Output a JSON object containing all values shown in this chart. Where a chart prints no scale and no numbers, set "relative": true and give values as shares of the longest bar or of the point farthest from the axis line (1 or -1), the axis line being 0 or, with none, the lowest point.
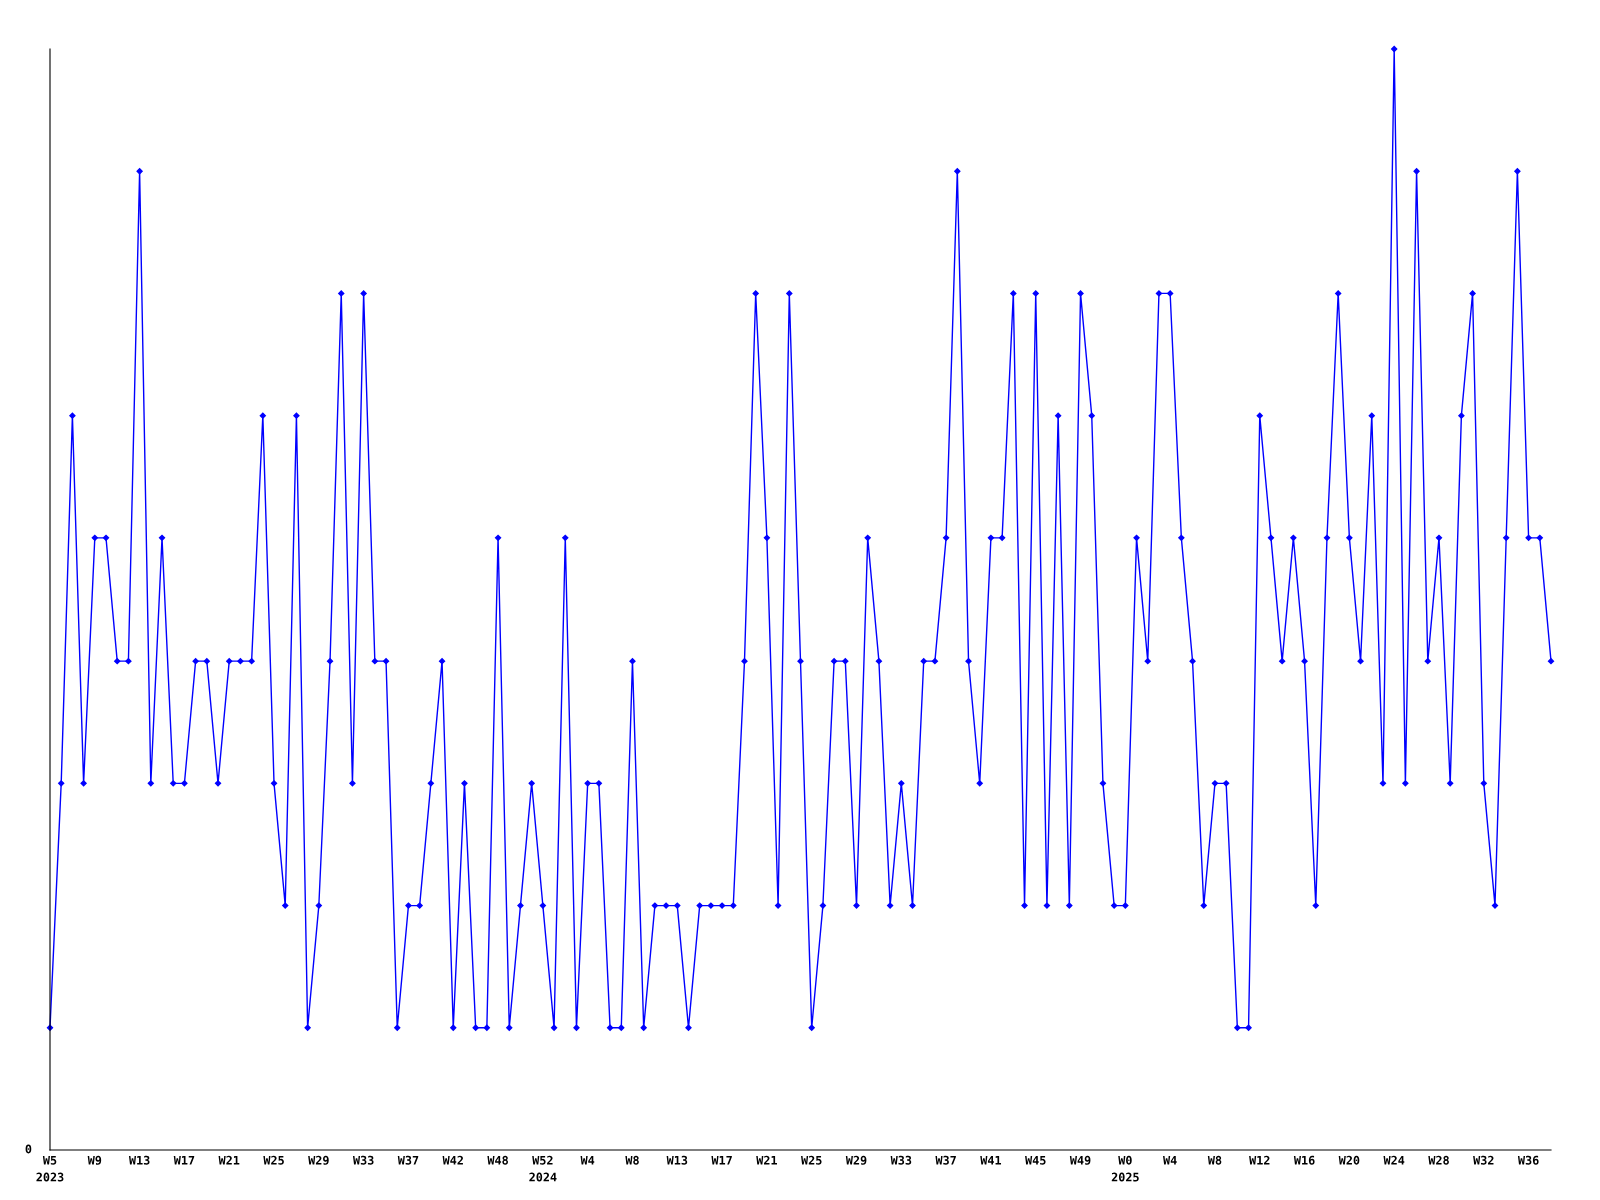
{
  "chart_data": {
    "type": "line",
    "relative": true,
    "marker": "diamond",
    "line_style": "solid",
    "grid": false,
    "legend": false,
    "annotations": [
      "0"
    ],
    "categories": [
      "W5\n2023",
      null,
      null,
      null,
      "W9",
      null,
      null,
      null,
      "W13",
      null,
      null,
      null,
      "W17",
      null,
      null,
      null,
      "W21",
      null,
      null,
      null,
      "W25",
      null,
      null,
      null,
      "W29",
      null,
      null,
      null,
      "W33",
      null,
      null,
      null,
      "W37",
      null,
      null,
      null,
      "W42",
      null,
      null,
      null,
      "W48",
      null,
      null,
      null,
      "W52\n2024",
      null,
      null,
      null,
      "W4",
      null,
      null,
      null,
      "W8",
      null,
      null,
      null,
      "W13",
      null,
      null,
      null,
      "W17",
      null,
      null,
      null,
      "W21",
      null,
      null,
      null,
      "W25",
      null,
      null,
      null,
      "W29",
      null,
      null,
      null,
      "W33",
      null,
      null,
      null,
      "W37",
      null,
      null,
      null,
      "W41",
      null,
      null,
      null,
      "W45",
      null,
      null,
      null,
      "W49",
      null,
      null,
      null,
      "W0\n2025",
      null,
      null,
      null,
      "W4",
      null,
      null,
      null,
      "W8",
      null,
      null,
      null,
      "W12",
      null,
      null,
      null,
      "W16",
      null,
      null,
      null,
      "W20",
      null,
      null,
      null,
      "W24",
      null,
      null,
      null,
      "W28",
      null,
      null,
      null,
      "W32",
      null,
      null,
      null,
      "W36",
      null,
      null
    ],
    "series": [
      {
        "color": "#0000ff",
        "values": [
          0.111,
          0.333,
          0.667,
          0.333,
          0.556,
          0.556,
          0.444,
          0.444,
          0.889,
          0.333,
          0.556,
          0.333,
          0.333,
          0.444,
          0.444,
          0.333,
          0.444,
          0.444,
          0.444,
          0.667,
          0.333,
          0.222,
          0.667,
          0.111,
          0.222,
          0.444,
          0.778,
          0.333,
          0.778,
          0.444,
          0.444,
          0.111,
          0.222,
          0.222,
          0.333,
          0.444,
          0.111,
          0.333,
          0.111,
          0.111,
          0.556,
          0.111,
          0.222,
          0.333,
          0.222,
          0.111,
          0.556,
          0.111,
          0.333,
          0.333,
          0.111,
          0.111,
          0.444,
          0.111,
          0.222,
          0.222,
          0.222,
          0.111,
          0.222,
          0.222,
          0.222,
          0.222,
          0.444,
          0.778,
          0.556,
          0.222,
          0.778,
          0.444,
          0.111,
          0.222,
          0.444,
          0.444,
          0.222,
          0.556,
          0.444,
          0.222,
          0.333,
          0.222,
          0.444,
          0.444,
          0.556,
          0.889,
          0.444,
          0.333,
          0.556,
          0.556,
          0.778,
          0.222,
          0.778,
          0.222,
          0.667,
          0.222,
          0.778,
          0.667,
          0.333,
          0.222,
          0.222,
          0.556,
          0.444,
          0.778,
          0.778,
          0.556,
          0.444,
          0.222,
          0.333,
          0.333,
          0.111,
          0.111,
          0.667,
          0.556,
          0.444,
          0.556,
          0.444,
          0.222,
          0.556,
          0.778,
          0.556,
          0.444,
          0.667,
          0.333,
          1,
          0.333,
          0.889,
          0.444,
          0.556,
          0.333,
          0.667,
          0.778,
          0.333,
          0.222,
          0.556,
          0.889,
          0.556,
          0.556,
          0.444
        ]
      }
    ]
  }
}
